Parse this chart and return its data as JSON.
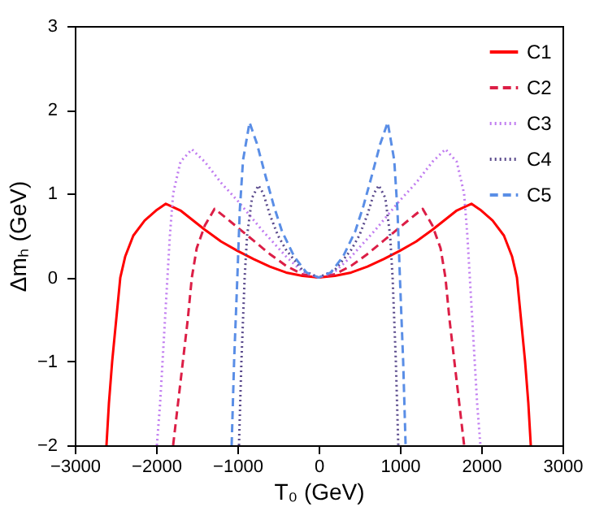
{
  "chart_data": {
    "type": "line",
    "xlabel": "T₀ (GeV)",
    "ylabel": "Δmₕ (GeV)",
    "xlim": [
      -3000,
      3000
    ],
    "ylim": [
      -2,
      3
    ],
    "xticks": [
      -3000,
      -2000,
      -1000,
      0,
      1000,
      2000,
      3000
    ],
    "yticks": [
      -2,
      -1,
      0,
      1,
      2,
      3
    ],
    "grid": false,
    "legend": "top right",
    "marker": "none",
    "series": [
      {
        "name": "C1",
        "color": "#ff0000",
        "line_style": "solid",
        "x": [
          -2610,
          -2580,
          -2540,
          -2490,
          -2440,
          -2380,
          -2280,
          -2140,
          -2000,
          -1880,
          -1700,
          -1400,
          -1200,
          -1000,
          -800,
          -600,
          -400,
          -200,
          0,
          200,
          400,
          600,
          800,
          1000,
          1200,
          1400,
          1700,
          1880,
          2000,
          2140,
          2280,
          2380,
          2440,
          2490,
          2540,
          2580,
          2610
        ],
        "values": [
          -2,
          -1.5,
          -1,
          -0.5,
          0,
          0.25,
          0.5,
          0.68,
          0.8,
          0.88,
          0.8,
          0.57,
          0.43,
          0.32,
          0.22,
          0.13,
          0.06,
          0.02,
          0,
          0.02,
          0.06,
          0.13,
          0.22,
          0.32,
          0.43,
          0.57,
          0.8,
          0.88,
          0.8,
          0.68,
          0.5,
          0.25,
          0,
          -0.5,
          -1,
          -1.5,
          -2
        ]
      },
      {
        "name": "C2",
        "color": "#dc1e46",
        "line_style": "dashed",
        "x": [
          -1790,
          -1730,
          -1670,
          -1610,
          -1560,
          -1500,
          -1400,
          -1280,
          -1150,
          -1000,
          -800,
          -600,
          -400,
          -200,
          0,
          200,
          400,
          600,
          800,
          1000,
          1150,
          1280,
          1400,
          1500,
          1560,
          1610,
          1670,
          1730,
          1790
        ],
        "values": [
          -2,
          -1.5,
          -1,
          -0.5,
          0,
          0.35,
          0.62,
          0.82,
          0.72,
          0.6,
          0.44,
          0.28,
          0.14,
          0.04,
          0,
          0.04,
          0.14,
          0.28,
          0.44,
          0.6,
          0.72,
          0.82,
          0.62,
          0.35,
          0,
          -0.5,
          -1,
          -1.5,
          -2
        ]
      },
      {
        "name": "C3",
        "color": "#c07cf0",
        "line_style": "dotted",
        "x": [
          -1990,
          -1950,
          -1920,
          -1890,
          -1860,
          -1830,
          -1790,
          -1700,
          -1560,
          -1400,
          -1200,
          -1000,
          -700,
          -400,
          -200,
          0,
          200,
          400,
          700,
          1000,
          1200,
          1400,
          1560,
          1700,
          1790,
          1830,
          1860,
          1890,
          1920,
          1950,
          1990
        ],
        "values": [
          -2,
          -1.5,
          -1,
          -0.5,
          0,
          0.5,
          1.0,
          1.38,
          1.53,
          1.38,
          1.13,
          0.92,
          0.57,
          0.25,
          0.07,
          0,
          0.07,
          0.25,
          0.57,
          0.92,
          1.13,
          1.38,
          1.53,
          1.38,
          1.0,
          0.5,
          0,
          -0.5,
          -1,
          -1.5,
          -2
        ]
      },
      {
        "name": "C4",
        "color": "#5a4a8c",
        "line_style": "dotted",
        "x": [
          -980,
          -950,
          -910,
          -880,
          -820,
          -740,
          -680,
          -600,
          -500,
          -400,
          -200,
          0,
          200,
          400,
          500,
          600,
          680,
          740,
          820,
          880,
          910,
          950,
          980
        ],
        "values": [
          -2,
          -1,
          0,
          0.5,
          0.95,
          1.1,
          1.0,
          0.75,
          0.5,
          0.33,
          0.09,
          0,
          0.09,
          0.33,
          0.5,
          0.75,
          1.0,
          1.1,
          0.95,
          0.5,
          0,
          -1,
          -2
        ]
      },
      {
        "name": "C5",
        "color": "#5a8ee6",
        "line_style": "dashed",
        "x": [
          -1070,
          -1040,
          -1000,
          -970,
          -930,
          -850,
          -760,
          -650,
          -550,
          -450,
          -300,
          -150,
          0,
          150,
          300,
          450,
          550,
          650,
          760,
          850,
          930,
          970,
          1000,
          1040,
          1070
        ],
        "values": [
          -2,
          -1,
          0,
          0.8,
          1.4,
          1.85,
          1.6,
          1.2,
          0.85,
          0.55,
          0.25,
          0.06,
          0,
          0.06,
          0.25,
          0.55,
          0.85,
          1.2,
          1.6,
          1.85,
          1.4,
          0.8,
          0,
          -1,
          -2
        ]
      }
    ]
  }
}
